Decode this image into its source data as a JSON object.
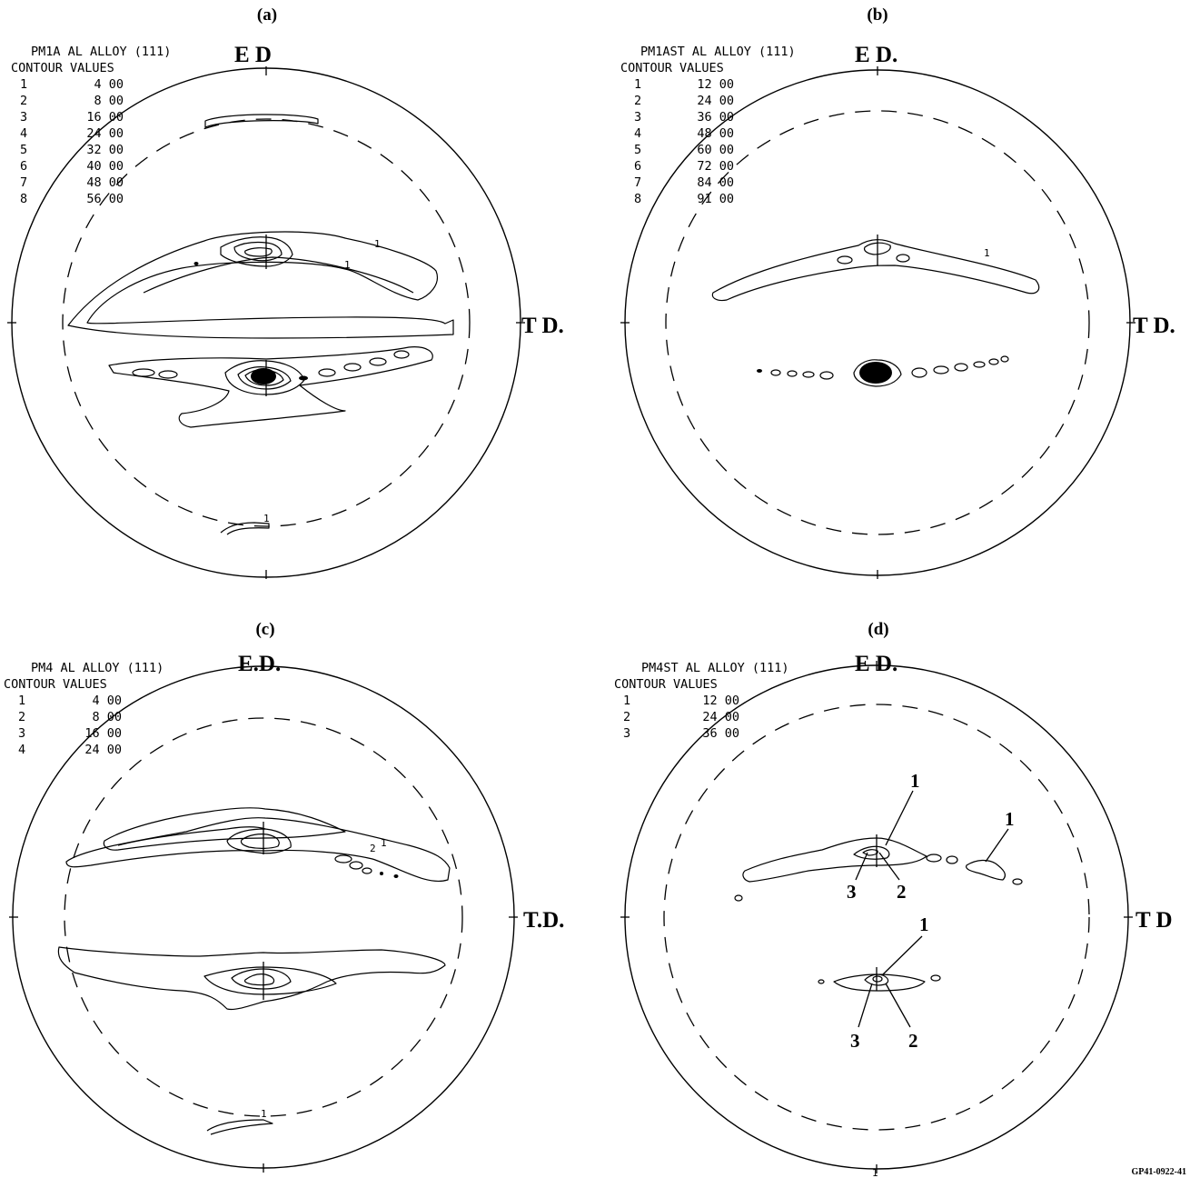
{
  "figure_id": "GP41-0922-41",
  "panels": [
    {
      "label": "(a)",
      "title": "PM1A AL ALLOY (111)",
      "contour_heading": "CONTOUR VALUES",
      "top_axis": "E D",
      "right_axis": "T D.",
      "contour_table": [
        {
          "level": "1",
          "value": "4 00"
        },
        {
          "level": "2",
          "value": "8 00"
        },
        {
          "level": "3",
          "value": "16 00"
        },
        {
          "level": "4",
          "value": "24 00"
        },
        {
          "level": "5",
          "value": "32 00"
        },
        {
          "level": "6",
          "value": "40 00"
        },
        {
          "level": "7",
          "value": "48 00"
        },
        {
          "level": "8",
          "value": "56 00"
        }
      ]
    },
    {
      "label": "(b)",
      "title": "PM1AST AL ALLOY (111)",
      "contour_heading": "CONTOUR VALUES",
      "top_axis": "E D.",
      "right_axis": "T D.",
      "contour_table": [
        {
          "level": "1",
          "value": "12 00"
        },
        {
          "level": "2",
          "value": "24 00"
        },
        {
          "level": "3",
          "value": "36 00"
        },
        {
          "level": "4",
          "value": "48 00"
        },
        {
          "level": "5",
          "value": "60 00"
        },
        {
          "level": "6",
          "value": "72 00"
        },
        {
          "level": "7",
          "value": "84 00"
        },
        {
          "level": "8",
          "value": "91 00"
        }
      ]
    },
    {
      "label": "(c)",
      "title": "PM4 AL ALLOY (111)",
      "contour_heading": "CONTOUR VALUES",
      "top_axis": "E.D.",
      "right_axis": "T.D.",
      "contour_table": [
        {
          "level": "1",
          "value": "4 00"
        },
        {
          "level": "2",
          "value": "8 00"
        },
        {
          "level": "3",
          "value": "16 00"
        },
        {
          "level": "4",
          "value": "24 00"
        }
      ]
    },
    {
      "label": "(d)",
      "title": "PM4ST AL ALLOY (111)",
      "contour_heading": "CONTOUR VALUES",
      "top_axis": "E D.",
      "right_axis": "T D",
      "contour_table": [
        {
          "level": "1",
          "value": "12 00"
        },
        {
          "level": "2",
          "value": "24 00"
        },
        {
          "level": "3",
          "value": "36 00"
        }
      ],
      "annotations": [
        "1",
        "1",
        "3",
        "2",
        "1",
        "3",
        "2"
      ]
    }
  ],
  "contour_marks": [
    "1",
    "1",
    "1",
    "1",
    "2",
    "1",
    "1",
    "1"
  ]
}
